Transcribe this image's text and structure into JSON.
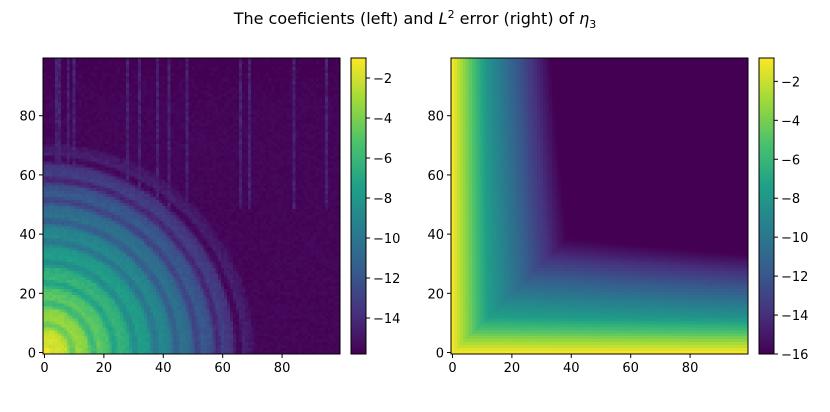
{
  "figure": {
    "title_text": "The coeficients (left) and ",
    "title_L": "L",
    "title_sup": "2",
    "title_mid": " error (right) of ",
    "title_eta": "η",
    "title_sub": "3"
  },
  "colormap": {
    "name": "viridis",
    "stops": [
      "#440154",
      "#46327e",
      "#365c8d",
      "#277f8e",
      "#1fa187",
      "#4ac16d",
      "#a0da39",
      "#fde725"
    ]
  },
  "chart_data": [
    {
      "type": "heatmap",
      "name": "coefficients (left)",
      "title": "",
      "xlabel": "",
      "ylabel": "",
      "grid_size": [
        100,
        100
      ],
      "xlim": [
        0,
        99
      ],
      "ylim": [
        0,
        99
      ],
      "x_ticks": [
        "0",
        "20",
        "40",
        "60",
        "80"
      ],
      "y_ticks": [
        "0",
        "20",
        "40",
        "60",
        "80"
      ],
      "colorbar": {
        "range": [
          -15.8,
          -1.0
        ],
        "ticks": [
          "−2",
          "−4",
          "−6",
          "−8",
          "−10",
          "−12",
          "−14"
        ]
      },
      "description_of_values": "log10 magnitude of coefficients; approx. -1 at origin, decaying radially with concentric ring bands, noisy floor near -15.5 for large indices (row > ~80)"
    },
    {
      "type": "heatmap",
      "name": "L2 error (right)",
      "title": "",
      "xlabel": "",
      "ylabel": "",
      "grid_size": [
        100,
        100
      ],
      "xlim": [
        0,
        99
      ],
      "ylim": [
        0,
        99
      ],
      "x_ticks": [
        "0",
        "20",
        "40",
        "60",
        "80"
      ],
      "y_ticks": [
        "0",
        "20",
        "40",
        "60",
        "80"
      ],
      "colorbar": {
        "range": [
          -16.0,
          -0.8
        ],
        "ticks": [
          "−2",
          "−4",
          "−6",
          "−8",
          "−10",
          "−12",
          "−14",
          "−16"
        ]
      },
      "description_of_values": "log10 L2 error; approx. -1 along edges x=0 or y=0, decreasing with min(x,y), reaching about -16 near (90,90)"
    }
  ]
}
